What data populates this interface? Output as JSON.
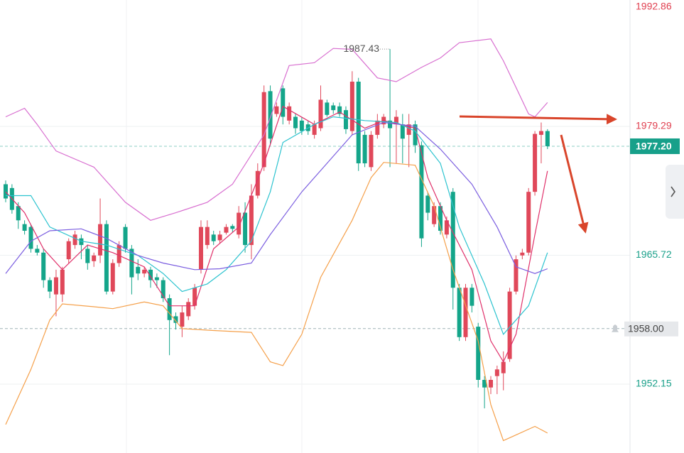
{
  "chart_data": {
    "type": "candlestick",
    "up_color": "#e0485a",
    "down_color": "#14a58a",
    "open": [
      1973.2,
      1972.8,
      1970.9,
      1969.0,
      1968.7,
      1966.4,
      1966.0,
      1963.1,
      1961.6,
      1961.6,
      1965.3,
      1966.8,
      1967.5,
      1966.4,
      1965.1,
      1965.7,
      1969.0,
      1961.9,
      1964.9,
      1968.7,
      1966.4,
      1964.5,
      1963.8,
      1964.2,
      1963.4,
      1963.1,
      1961.2,
      1959.3,
      1958.2,
      1959.3,
      1960.4,
      1964.2,
      1966.8,
      1967.9,
      1967.3,
      1968.1,
      1968.8,
      1967.9,
      1970.2,
      1966.8,
      1972.0,
      1975.0,
      1983.0,
      1980.6,
      1983.3,
      1979.9,
      1980.3,
      1979.9,
      1979.5,
      1978.4,
      1979.1,
      1981.8,
      1981.5,
      1981.4,
      1981.0,
      1978.8,
      1984.0,
      1978.4,
      1975.0,
      1978.4,
      1979.5,
      1979.9,
      1979.5,
      1979.5,
      1978.4,
      1979.5,
      1977.3,
      1972.0,
      1969.0,
      1970.9,
      1967.9,
      1972.4,
      1962.3,
      1957.1,
      1962.3,
      1958.2,
      1952.6,
      1951.8,
      1953.0,
      1953.3,
      1954.8,
      1961.9,
      1965.7,
      1966.0,
      1972.4,
      1978.4,
      1978.8
    ],
    "high": [
      1973.6,
      1973.2,
      1971.3,
      1969.4,
      1969.0,
      1966.8,
      1966.4,
      1963.4,
      1964.2,
      1964.5,
      1967.5,
      1968.3,
      1967.9,
      1966.8,
      1966.0,
      1971.7,
      1969.4,
      1965.3,
      1967.2,
      1969.0,
      1966.8,
      1965.3,
      1964.5,
      1964.5,
      1963.8,
      1963.4,
      1961.6,
      1959.7,
      1960.4,
      1961.2,
      1962.7,
      1969.4,
      1969.4,
      1968.3,
      1968.3,
      1969.0,
      1969.0,
      1970.9,
      1971.3,
      1973.2,
      1975.4,
      1983.6,
      1983.6,
      1981.8,
      1983.6,
      1981.8,
      1980.6,
      1980.3,
      1979.9,
      1979.9,
      1983.6,
      1982.1,
      1981.8,
      1981.8,
      1981.4,
      1985.1,
      1984.4,
      1978.8,
      1978.8,
      1980.6,
      1980.6,
      1987.43,
      1981.0,
      1980.6,
      1980.6,
      1979.9,
      1977.7,
      1972.4,
      1971.3,
      1971.3,
      1969.8,
      1972.8,
      1962.7,
      1962.7,
      1962.7,
      1958.6,
      1953.0,
      1953.0,
      1954.1,
      1955.6,
      1962.3,
      1965.7,
      1966.4,
      1972.8,
      1978.8,
      1979.7,
      1979.0
    ],
    "low": [
      1971.3,
      1970.1,
      1968.5,
      1967.9,
      1966.0,
      1965.7,
      1962.3,
      1961.2,
      1959.3,
      1960.8,
      1964.9,
      1966.4,
      1965.3,
      1964.2,
      1964.5,
      1964.9,
      1961.6,
      1961.6,
      1964.5,
      1966.0,
      1961.6,
      1963.1,
      1963.4,
      1962.3,
      1962.3,
      1960.8,
      1955.2,
      1957.9,
      1957.1,
      1958.9,
      1960.0,
      1963.8,
      1966.4,
      1966.8,
      1967.0,
      1967.9,
      1968.1,
      1967.5,
      1966.0,
      1965.3,
      1971.7,
      1974.6,
      1977.3,
      1980.3,
      1979.5,
      1979.5,
      1978.5,
      1978.4,
      1978.4,
      1978.0,
      1978.8,
      1980.3,
      1980.6,
      1980.3,
      1978.5,
      1978.4,
      1974.6,
      1975.0,
      1974.6,
      1978.0,
      1979.1,
      1975.0,
      1975.4,
      1975.4,
      1975.0,
      1976.5,
      1966.6,
      1969.4,
      1968.7,
      1967.9,
      1967.5,
      1960.0,
      1956.7,
      1956.7,
      1959.7,
      1951.8,
      1949.6,
      1951.1,
      1951.1,
      1951.5,
      1954.5,
      1961.6,
      1965.3,
      1965.7,
      1972.0,
      1975.4,
      1976.9
    ],
    "close": [
      1971.7,
      1970.5,
      1969.4,
      1968.3,
      1966.4,
      1966.0,
      1963.1,
      1961.9,
      1963.4,
      1964.2,
      1967.2,
      1967.9,
      1966.8,
      1964.9,
      1965.7,
      1969.0,
      1961.9,
      1964.9,
      1966.8,
      1966.4,
      1963.4,
      1963.8,
      1964.2,
      1963.1,
      1963.1,
      1961.2,
      1958.9,
      1958.6,
      1959.7,
      1960.8,
      1962.3,
      1968.7,
      1968.7,
      1967.2,
      1967.9,
      1968.7,
      1968.5,
      1970.2,
      1966.8,
      1972.0,
      1974.6,
      1982.9,
      1978.0,
      1981.4,
      1980.3,
      1981.4,
      1979.1,
      1978.8,
      1978.8,
      1979.5,
      1982.1,
      1980.5,
      1981.0,
      1980.6,
      1979.0,
      1984.0,
      1975.4,
      1975.4,
      1978.4,
      1979.9,
      1980.3,
      1979.1,
      1980.3,
      1978.0,
      1979.5,
      1977.3,
      1967.5,
      1970.2,
      1970.9,
      1968.3,
      1969.4,
      1962.3,
      1957.1,
      1962.3,
      1960.4,
      1952.6,
      1951.8,
      1952.6,
      1953.7,
      1954.5,
      1961.9,
      1965.3,
      1966.0,
      1972.4,
      1978.5,
      1978.8,
      1977.2
    ],
    "overlays": [
      {
        "color": "#d86fd0",
        "x": [
          0,
          3,
          5,
          8,
          14,
          19,
          23,
          27,
          32,
          36,
          41,
          45,
          49,
          52,
          55,
          59,
          62,
          66,
          69,
          72,
          77,
          79,
          83,
          84,
          86
        ],
        "values": [
          1980.3,
          1981.2,
          1979.5,
          1976.7,
          1975.0,
          1971.3,
          1969.4,
          1970.2,
          1971.3,
          1973.2,
          1978.4,
          1985.7,
          1986.0,
          1987.5,
          1987.4,
          1984.4,
          1984.0,
          1985.5,
          1986.5,
          1988.1,
          1988.5,
          1986.2,
          1980.6,
          1980.3,
          1981.8
        ]
      },
      {
        "color": "#f5a04a",
        "x": [
          0,
          4,
          7,
          9,
          14,
          17,
          22,
          25,
          28,
          33,
          39,
          42,
          44,
          47,
          50,
          55,
          58,
          60,
          65,
          68,
          71,
          75,
          77,
          79,
          81,
          84,
          86
        ],
        "values": [
          1947.9,
          1953.7,
          1958.9,
          1960.6,
          1960.3,
          1960.1,
          1960.8,
          1960.4,
          1958.0,
          1957.8,
          1957.6,
          1954.5,
          1954.1,
          1957.4,
          1963.4,
          1969.4,
          1973.9,
          1975.5,
          1975.2,
          1970.9,
          1964.2,
          1956.7,
          1950.0,
          1946.2,
          1946.8,
          1947.7,
          1947.0
        ]
      },
      {
        "color": "#e0306a",
        "x": [
          0,
          3,
          6,
          9,
          13,
          17,
          22,
          26,
          30,
          33,
          37,
          41,
          44,
          49,
          53,
          57,
          60,
          65,
          67,
          70,
          74,
          77,
          79,
          81,
          84,
          86
        ],
        "values": [
          1972.4,
          1970.2,
          1966.4,
          1964.2,
          1966.8,
          1966.0,
          1964.5,
          1960.4,
          1960.4,
          1966.4,
          1968.7,
          1975.4,
          1981.4,
          1979.5,
          1980.8,
          1979.1,
          1979.9,
          1979.1,
          1973.9,
          1969.4,
          1964.2,
          1956.7,
          1954.5,
          1957.4,
          1967.9,
          1974.6
        ]
      },
      {
        "color": "#2cc3cf",
        "x": [
          0,
          4,
          7,
          12,
          16,
          21,
          25,
          28,
          32,
          35,
          39,
          42,
          44,
          49,
          52,
          57,
          62,
          65,
          69,
          72,
          76,
          79,
          83,
          86
        ],
        "values": [
          1972.0,
          1972.0,
          1968.7,
          1967.2,
          1966.8,
          1965.7,
          1963.8,
          1961.9,
          1962.7,
          1964.2,
          1967.2,
          1972.4,
          1977.6,
          1979.5,
          1980.3,
          1979.9,
          1979.7,
          1978.8,
          1975.4,
          1968.7,
          1962.7,
          1957.4,
          1960.4,
          1966.0
        ]
      },
      {
        "color": "#7b5ee0",
        "x": [
          0,
          4,
          7,
          12,
          16,
          21,
          25,
          30,
          34,
          39,
          42,
          47,
          51,
          55,
          60,
          65,
          69,
          74,
          78,
          81,
          84,
          86
        ],
        "values": [
          1963.8,
          1967.2,
          1968.3,
          1968.5,
          1967.5,
          1965.7,
          1964.9,
          1964.2,
          1964.3,
          1964.9,
          1967.9,
          1972.4,
          1975.4,
          1978.4,
          1979.7,
          1979.3,
          1976.9,
          1973.2,
          1968.7,
          1964.5,
          1963.8,
          1964.3
        ]
      }
    ],
    "ylim": [
      1944.9,
      1992.86
    ],
    "yticks": [
      1952.15,
      1965.72,
      1979.29,
      1992.86
    ],
    "ytick_colors": [
      "#1aa08a",
      "#1aa08a",
      "#e04050",
      "#e04050"
    ],
    "grid": true,
    "max_label": 1987.43,
    "current_price": {
      "value": 1977.2,
      "label": "1977.20",
      "color": "#17a08a"
    },
    "alert_price": {
      "value": 1958,
      "label": "1958.00",
      "color": "#e6e8eb"
    }
  }
}
